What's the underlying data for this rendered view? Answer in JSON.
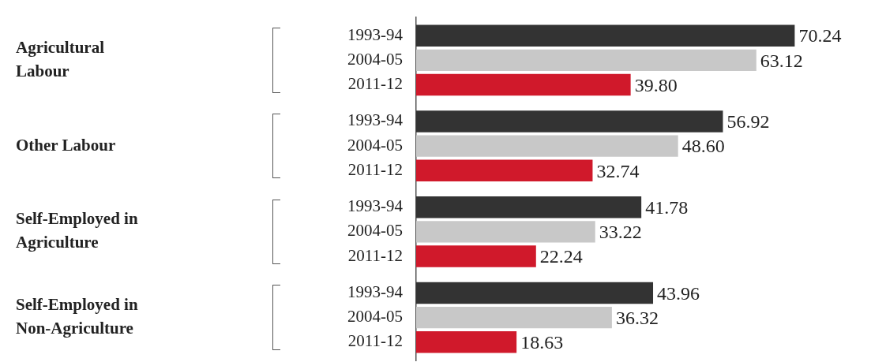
{
  "chart_data": {
    "type": "bar",
    "orientation": "horizontal",
    "categories": [
      "Agricultural Labour",
      "Other Labour",
      "Self-Employed in Agriculture",
      "Self-Employed in Non-Agriculture"
    ],
    "series": [
      {
        "name": "1993-94",
        "color": "#333333",
        "values": [
          70.24,
          56.92,
          41.78,
          43.96
        ],
        "value_labels": [
          "70.24",
          "56.92",
          "41.78",
          "43.96"
        ]
      },
      {
        "name": "2004-05",
        "color": "#c8c8c8",
        "values": [
          63.12,
          48.6,
          33.22,
          36.32
        ],
        "value_labels": [
          "63.12",
          "48.60",
          "33.22",
          "36.32"
        ]
      },
      {
        "name": "2011-12",
        "color": "#d0192b",
        "values": [
          39.8,
          32.74,
          22.24,
          18.63
        ],
        "value_labels": [
          "39.80",
          "32.74",
          "22.24",
          "18.63"
        ]
      }
    ],
    "grid": false,
    "legend": false
  }
}
